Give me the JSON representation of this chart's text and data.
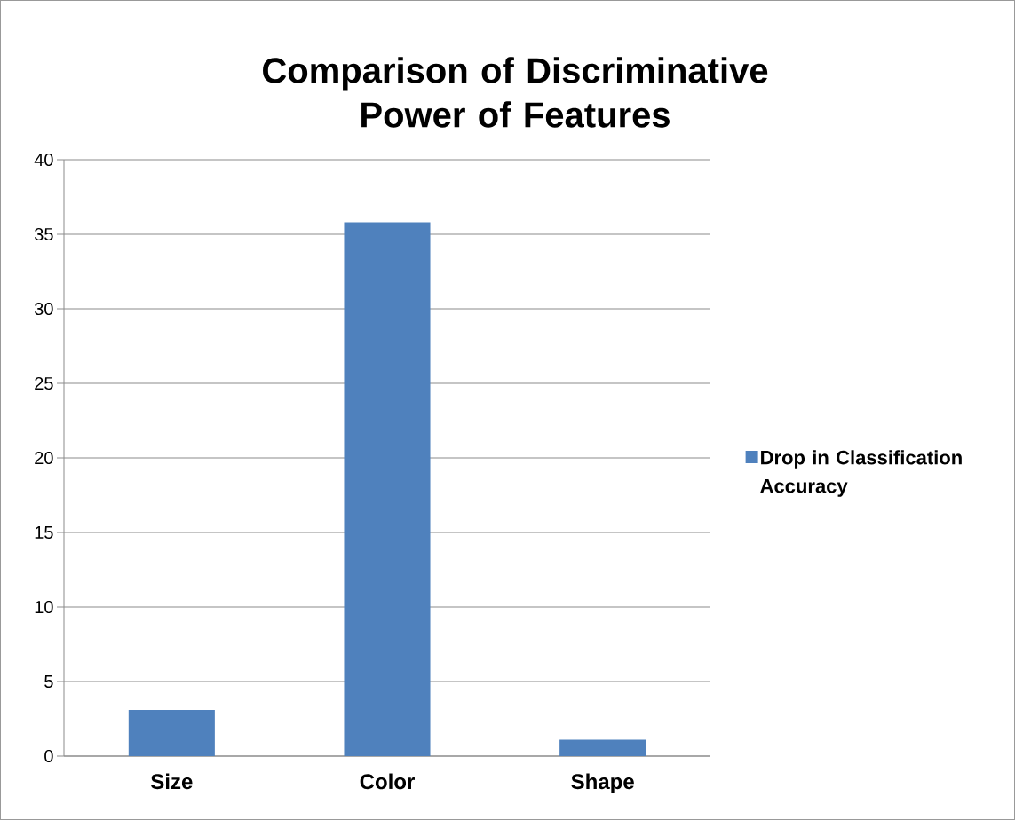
{
  "chart_data": {
    "type": "bar",
    "title": "Comparison of Discriminative Power of Features",
    "categories": [
      "Size",
      "Color",
      "Shape"
    ],
    "series": [
      {
        "name": "Drop in Classification Accuracy",
        "color": "#4f81bd",
        "values": [
          3.1,
          35.8,
          1.1
        ]
      }
    ],
    "ylim": [
      0,
      40
    ],
    "yticks": [
      0,
      5,
      10,
      15,
      20,
      25,
      30,
      35,
      40
    ],
    "grid": "y",
    "legend": "right"
  }
}
